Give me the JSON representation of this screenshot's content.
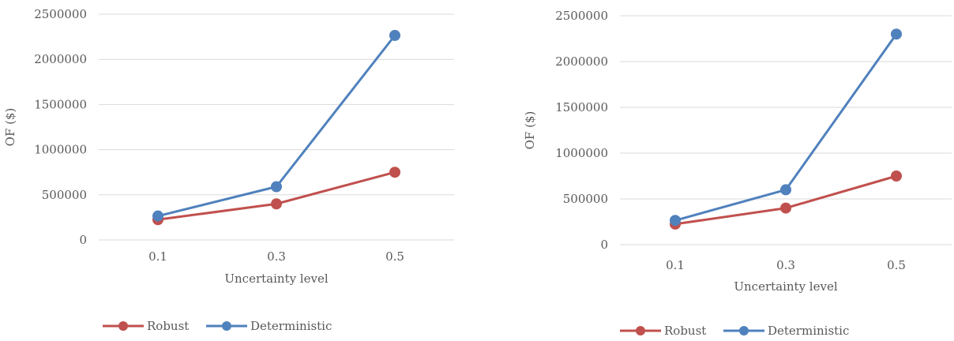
{
  "chart_data": [
    {
      "type": "line",
      "title": "",
      "xlabel": "Uncertainty level",
      "ylabel": "OF ($)",
      "categories": [
        "0.1",
        "0.3",
        "0.5"
      ],
      "ylim": [
        0,
        2500000
      ],
      "yticks": [
        "0",
        "500000",
        "1000000",
        "1500000",
        "2000000",
        "2500000"
      ],
      "grid": true,
      "legend_position": "bottom",
      "series": [
        {
          "name": "Robust",
          "color": "#c0504d",
          "values": [
            225000,
            400000,
            750000
          ]
        },
        {
          "name": "Deterministic",
          "color": "#4f81bd",
          "values": [
            265000,
            590000,
            2265000
          ]
        }
      ]
    },
    {
      "type": "line",
      "title": "",
      "xlabel": "Uncertainty level",
      "ylabel": "OF ($)",
      "categories": [
        "0.1",
        "0.3",
        "0.5"
      ],
      "ylim": [
        0,
        2500000
      ],
      "yticks": [
        "0",
        "500000",
        "1000000",
        "1500000",
        "2000000",
        "2500000"
      ],
      "grid": true,
      "legend_position": "bottom",
      "series": [
        {
          "name": "Robust",
          "color": "#c0504d",
          "values": [
            225000,
            400000,
            750000
          ]
        },
        {
          "name": "Deterministic",
          "color": "#4f81bd",
          "values": [
            265000,
            600000,
            2300000
          ]
        }
      ]
    }
  ]
}
